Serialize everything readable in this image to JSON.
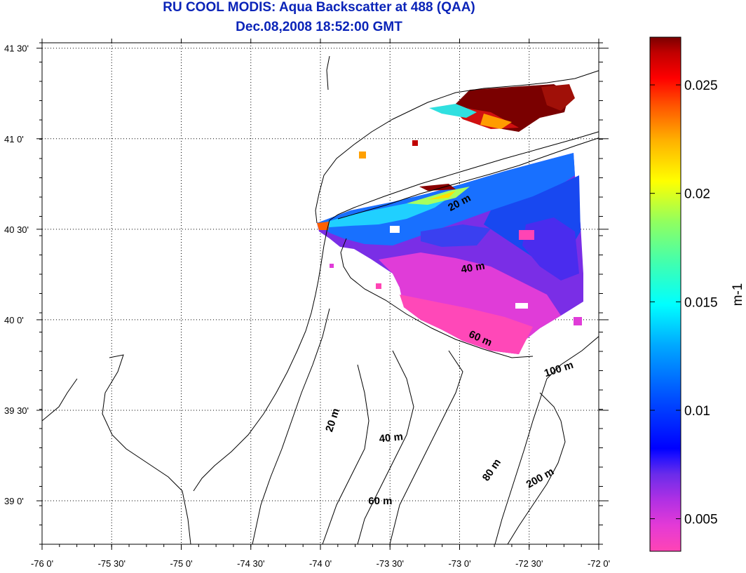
{
  "title": {
    "line1": "RU COOL MODIS: Aqua Backscatter at 488 (QAA)",
    "line2": "Dec.08,2008 18:52:00 GMT"
  },
  "map": {
    "x_ticks": [
      {
        "lon": -76.0,
        "label": "-76 0'"
      },
      {
        "lon": -75.5,
        "label": "-75 30'"
      },
      {
        "lon": -75.0,
        "label": "-75 0'"
      },
      {
        "lon": -74.5,
        "label": "-74 30'"
      },
      {
        "lon": -74.0,
        "label": "-74 0'"
      },
      {
        "lon": -73.5,
        "label": "-73 30'"
      },
      {
        "lon": -73.0,
        "label": "-73 0'"
      },
      {
        "lon": -72.5,
        "label": "-72 30'"
      },
      {
        "lon": -72.0,
        "label": "-72 0'"
      }
    ],
    "y_ticks": [
      {
        "lat": 41.5,
        "label": "41 30'"
      },
      {
        "lat": 41.0,
        "label": "41 0'"
      },
      {
        "lat": 40.5,
        "label": "40 30'"
      },
      {
        "lat": 40.0,
        "label": "40 0'"
      },
      {
        "lat": 39.5,
        "label": "39 30'"
      },
      {
        "lat": 39.0,
        "label": "39 0'"
      }
    ],
    "lon_range": [
      -76.0,
      -72.0
    ],
    "lat_range": [
      38.76,
      41.53
    ],
    "grid": true,
    "contour_labels": [
      {
        "text": "20 m",
        "lon": -72.99,
        "lat": 40.63
      },
      {
        "text": "40 m",
        "lon": -72.9,
        "lat": 40.27
      },
      {
        "text": "60 m",
        "lon": -72.86,
        "lat": 39.88
      },
      {
        "text": "100 m",
        "lon": -72.28,
        "lat": 39.71
      },
      {
        "text": "20 m",
        "lon": -73.89,
        "lat": 39.44
      },
      {
        "text": "40 m",
        "lon": -73.49,
        "lat": 39.33
      },
      {
        "text": "80 m",
        "lon": -72.75,
        "lat": 39.16
      },
      {
        "text": "200 m",
        "lon": -72.41,
        "lat": 39.11
      },
      {
        "text": "60 m",
        "lon": -73.57,
        "lat": 38.98
      }
    ]
  },
  "colorbar": {
    "range": [
      0.0035,
      0.0272
    ],
    "ticks": [
      {
        "value": 0.025,
        "label": "0.025"
      },
      {
        "value": 0.02,
        "label": "0.02"
      },
      {
        "value": 0.015,
        "label": "0.015"
      },
      {
        "value": 0.01,
        "label": "0.01"
      },
      {
        "value": 0.005,
        "label": "0.005"
      }
    ],
    "unit_label": "m-1",
    "colors": [
      "#ff44b4",
      "#d838e0",
      "#9a2ce6",
      "#5c2cec",
      "#0000ff",
      "#0050ff",
      "#00a8ff",
      "#00ffff",
      "#40ffb0",
      "#90ff60",
      "#ffff00",
      "#ffb000",
      "#ff5000",
      "#ff0000",
      "#c00000",
      "#7a0000"
    ]
  }
}
